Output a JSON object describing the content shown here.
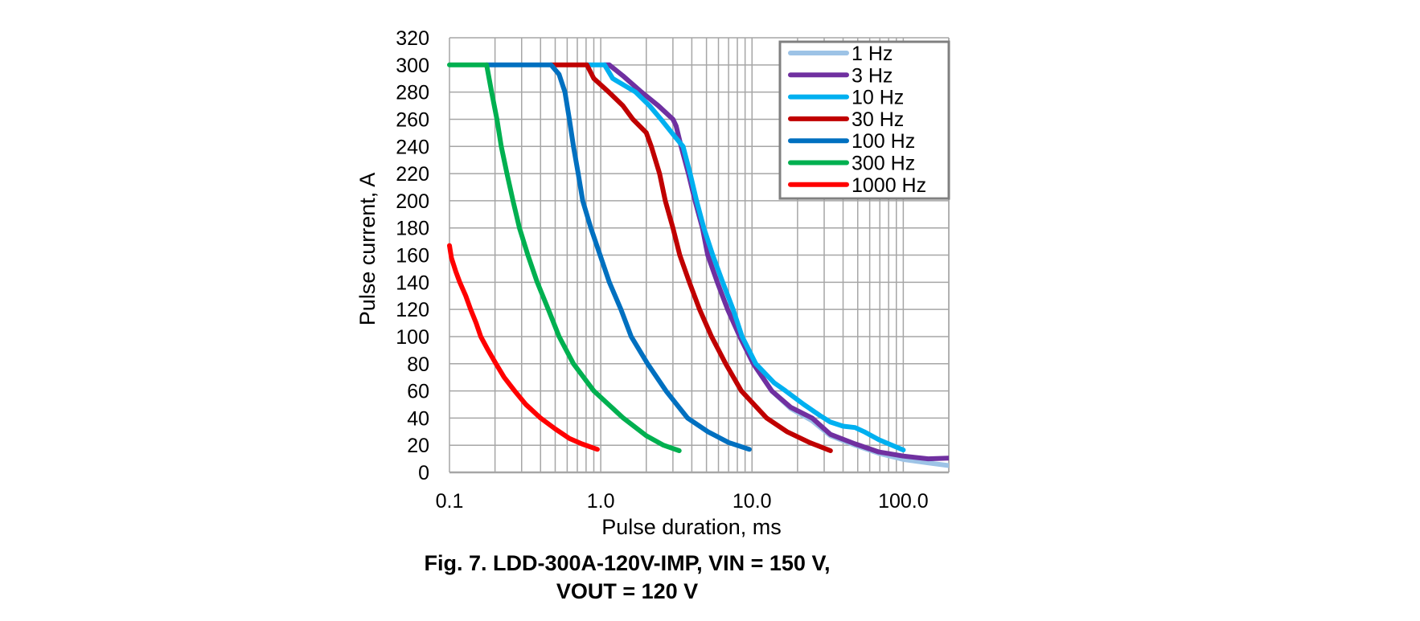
{
  "chart_data": {
    "type": "line",
    "title": "",
    "xlabel": "Pulse duration, ms",
    "ylabel": "Pulse current, A",
    "xscale": "log",
    "xlim": [
      0.1,
      200
    ],
    "ylim": [
      0,
      320
    ],
    "xticks": [
      0.1,
      1,
      10,
      100
    ],
    "xtick_labels": [
      "0.1",
      "1.0",
      "10.0",
      "100.0"
    ],
    "yticks": [
      0,
      20,
      40,
      60,
      80,
      100,
      120,
      140,
      160,
      180,
      200,
      220,
      240,
      260,
      280,
      300,
      320
    ],
    "ytick_labels": [
      "0",
      "20",
      "40",
      "60",
      "80",
      "100",
      "120",
      "140",
      "160",
      "180",
      "200",
      "220",
      "240",
      "260",
      "280",
      "300",
      "320"
    ],
    "grid": true,
    "legend_position": "top-right",
    "series": [
      {
        "name": "1 Hz",
        "color": "#9DC3E6",
        "x": [
          1.06,
          1.14,
          1.4,
          1.86,
          2.4,
          3.0,
          3.15,
          3.4,
          3.8,
          4.2,
          4.7,
          5.1,
          5.9,
          6.9,
          8.3,
          10.2,
          13.5,
          18,
          25,
          33,
          48,
          69,
          100,
          146,
          200
        ],
        "y": [
          300,
          300,
          292,
          280,
          270,
          260,
          255,
          240,
          220,
          200,
          180,
          160,
          140,
          120,
          100,
          80,
          60,
          47,
          38,
          27,
          20,
          14,
          9.5,
          7,
          5
        ]
      },
      {
        "name": "3 Hz",
        "color": "#7030A0",
        "x": [
          1.06,
          1.14,
          1.4,
          1.86,
          2.4,
          3.0,
          3.15,
          3.4,
          3.8,
          4.2,
          4.7,
          5.1,
          5.9,
          6.9,
          8.3,
          10.2,
          13.5,
          18,
          25,
          33,
          48,
          69,
          100,
          146,
          200
        ],
        "y": [
          300,
          300,
          292,
          280,
          270,
          260,
          255,
          240,
          220,
          200,
          180,
          160,
          140,
          120,
          100,
          80,
          60,
          48,
          40,
          28,
          21,
          15,
          12,
          10,
          10.5
        ]
      },
      {
        "name": "10 Hz",
        "color": "#00B0F0",
        "x": [
          0.8,
          1.06,
          1.2,
          1.7,
          2.1,
          2.5,
          3.1,
          3.5,
          3.9,
          4.3,
          4.8,
          5.5,
          6.4,
          7.5,
          8.6,
          10.6,
          14,
          16.7,
          22,
          28,
          33,
          40,
          48,
          55,
          69,
          100
        ],
        "y": [
          300,
          300,
          290,
          280,
          270,
          260,
          247,
          240,
          220,
          200,
          180,
          160,
          140,
          120,
          100,
          80,
          66,
          60,
          50,
          42,
          37,
          34,
          33,
          30,
          24,
          16.5
        ]
      },
      {
        "name": "30 Hz",
        "color": "#C00000",
        "x": [
          0.47,
          0.81,
          0.9,
          1.13,
          1.4,
          1.63,
          2.0,
          2.16,
          2.45,
          2.67,
          3.0,
          3.33,
          3.85,
          4.5,
          5.4,
          6.7,
          8.5,
          12.5,
          17,
          24,
          33
        ],
        "y": [
          300,
          300,
          290,
          280,
          270,
          260,
          250,
          240,
          220,
          200,
          180,
          160,
          140,
          120,
          100,
          80,
          60,
          40,
          30,
          22,
          16
        ]
      },
      {
        "name": "100 Hz",
        "color": "#0070C0",
        "x": [
          0.176,
          0.47,
          0.53,
          0.58,
          0.62,
          0.66,
          0.71,
          0.76,
          0.86,
          0.99,
          1.14,
          1.36,
          1.59,
          2.04,
          2.7,
          3.75,
          5.1,
          7.0,
          9.6
        ],
        "y": [
          300,
          300,
          293,
          280,
          260,
          240,
          220,
          200,
          180,
          160,
          140,
          120,
          100,
          80,
          60,
          40,
          30,
          22,
          17
        ]
      },
      {
        "name": "300 Hz",
        "color": "#00B050",
        "x": [
          0.1,
          0.176,
          0.19,
          0.206,
          0.22,
          0.24,
          0.263,
          0.29,
          0.33,
          0.38,
          0.45,
          0.53,
          0.66,
          0.9,
          1.41,
          2.0,
          2.6,
          3.3
        ],
        "y": [
          300,
          300,
          280,
          260,
          240,
          220,
          200,
          180,
          160,
          140,
          120,
          100,
          80,
          60,
          40,
          27,
          20,
          16
        ]
      },
      {
        "name": "1000 Hz",
        "color": "#FF0000",
        "x": [
          0.1,
          0.103,
          0.11,
          0.117,
          0.128,
          0.138,
          0.15,
          0.161,
          0.18,
          0.203,
          0.23,
          0.27,
          0.32,
          0.4,
          0.5,
          0.62,
          0.75,
          0.95
        ],
        "y": [
          167,
          158,
          148,
          140,
          130,
          120,
          110,
          100,
          90,
          80,
          70,
          60,
          50,
          40,
          32,
          25,
          21,
          17
        ]
      }
    ]
  },
  "caption": {
    "line1": "Fig. 7. LDD-300A-120V-IMP, VIN = 150 V,",
    "line2": "VOUT = 120 V"
  },
  "colors": {
    "grid": "#A6A6A6",
    "axis": "#A6A6A6",
    "legend_border": "#808080"
  }
}
